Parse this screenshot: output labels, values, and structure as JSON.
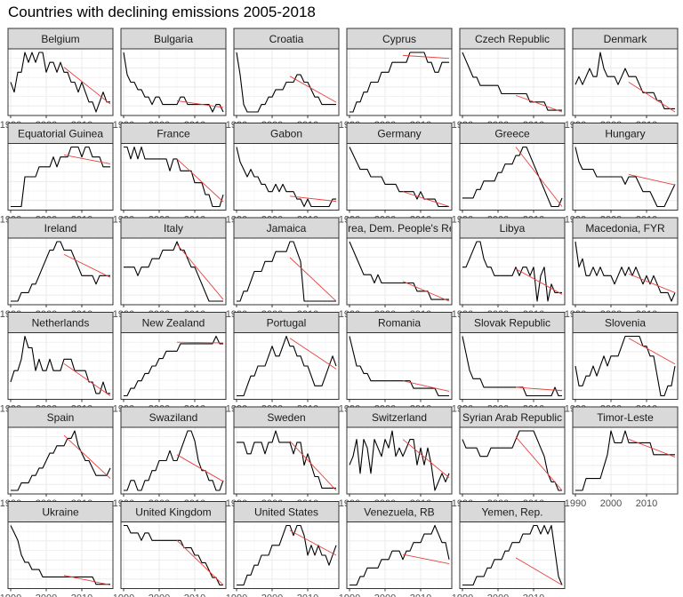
{
  "page": {
    "title": "Countries with declining emissions 2005-2018"
  },
  "chart_data": {
    "type": "line",
    "title": "Countries with declining emissions 2005-2018",
    "facet": "small multiples, 6 columns, free y scales",
    "x_ticks": [
      1990,
      2000,
      2010
    ],
    "xlim": [
      1990,
      2018
    ],
    "trend_period": [
      2005,
      2018
    ],
    "colors": {
      "series": "#000000",
      "trend": "#e8413f",
      "strip": "#d9d9d9",
      "grid": "#ebebeb"
    },
    "grid": true,
    "panels": [
      {
        "name": "Belgium",
        "values": [
          4,
          3,
          5,
          5,
          7,
          6,
          7,
          6,
          7,
          7,
          5,
          6,
          6,
          5,
          6,
          5,
          5,
          4,
          4,
          3,
          4,
          3,
          2,
          2,
          1,
          2,
          3,
          2,
          2
        ],
        "trend": [
          5.5,
          1.8
        ]
      },
      {
        "name": "Bulgaria",
        "values": [
          9,
          6,
          5,
          5,
          4,
          4,
          3,
          3,
          2,
          3,
          3,
          2,
          2,
          2,
          2,
          2,
          3,
          3,
          2,
          2,
          2,
          2,
          2,
          2,
          2,
          1,
          2,
          2,
          1
        ],
        "trend": [
          2.5,
          1.6
        ]
      },
      {
        "name": "Croatia",
        "values": [
          9,
          6,
          2,
          1,
          1,
          1,
          1,
          2,
          2,
          3,
          3,
          4,
          4,
          4,
          5,
          5,
          5,
          6,
          6,
          5,
          5,
          4,
          3,
          3,
          2,
          2,
          2,
          2,
          2
        ],
        "trend": [
          5.8,
          2.3
        ]
      },
      {
        "name": "Cyprus",
        "values": [
          1,
          1,
          2,
          2,
          3,
          3,
          4,
          4,
          4,
          5,
          5,
          5,
          6,
          6,
          6,
          6,
          6,
          7,
          7,
          7,
          7,
          7,
          6,
          6,
          5,
          5,
          6,
          6,
          6
        ],
        "trend": [
          6.7,
          6.4
        ]
      },
      {
        "name": "Czech Republic",
        "values": [
          9,
          8,
          7,
          6,
          6,
          5,
          5,
          5,
          5,
          5,
          5,
          4,
          4,
          4,
          4,
          4,
          4,
          4,
          4,
          3,
          3,
          3,
          3,
          3,
          2,
          2,
          2,
          2,
          2
        ],
        "trend": [
          3.8,
          1.8
        ]
      },
      {
        "name": "Denmark",
        "values": [
          5,
          6,
          5,
          6,
          7,
          6,
          6,
          9,
          7,
          6,
          6,
          6,
          5,
          6,
          7,
          6,
          6,
          6,
          5,
          4,
          4,
          4,
          4,
          3,
          3,
          2,
          2,
          2,
          2
        ],
        "trend": [
          5.3,
          1.6
        ]
      },
      {
        "name": "Equatorial Guinea",
        "values": [
          0,
          0,
          0,
          0,
          3,
          3,
          3,
          3,
          4,
          4,
          4,
          4,
          5,
          4,
          5,
          5,
          5,
          6,
          6,
          6,
          5,
          6,
          6,
          5,
          5,
          5,
          4,
          4,
          4
        ],
        "trend": [
          5.2,
          4.3
        ]
      },
      {
        "name": "France",
        "values": [
          7,
          7,
          6,
          7,
          6,
          7,
          6,
          6,
          6,
          6,
          6,
          6,
          6,
          5,
          6,
          6,
          5,
          5,
          5,
          5,
          4,
          4,
          4,
          3,
          3,
          2,
          2,
          2,
          3
        ],
        "trend": [
          6,
          2.4
        ]
      },
      {
        "name": "Gabon",
        "values": [
          10,
          8,
          7,
          6,
          7,
          6,
          6,
          5,
          5,
          4,
          4,
          5,
          4,
          5,
          4,
          4,
          4,
          3,
          3,
          2,
          3,
          2,
          2,
          2,
          2,
          2,
          2,
          3,
          3
        ],
        "trend": [
          3.4,
          2.7
        ]
      },
      {
        "name": "Germany",
        "values": [
          10,
          9,
          8,
          7,
          7,
          7,
          6,
          6,
          6,
          6,
          5,
          5,
          5,
          5,
          4,
          4,
          4,
          4,
          4,
          3,
          4,
          3,
          3,
          3,
          3,
          2,
          2,
          2,
          2
        ],
        "trend": [
          4,
          2
        ]
      },
      {
        "name": "Greece",
        "values": [
          3,
          3,
          3,
          3,
          4,
          4,
          5,
          5,
          5,
          5,
          6,
          6,
          7,
          7,
          7,
          8,
          8,
          9,
          9,
          8,
          7,
          6,
          5,
          4,
          3,
          2,
          2,
          2,
          3
        ],
        "trend": [
          9,
          2
        ]
      },
      {
        "name": "Hungary",
        "values": [
          9,
          7,
          6,
          6,
          6,
          6,
          5,
          5,
          5,
          5,
          5,
          5,
          5,
          5,
          4,
          5,
          5,
          5,
          4,
          3,
          3,
          3,
          2,
          1,
          1,
          1,
          2,
          3,
          4
        ],
        "trend": [
          5.3,
          3.9
        ]
      },
      {
        "name": "Ireland",
        "values": [
          2,
          2,
          2,
          3,
          3,
          3,
          4,
          4,
          5,
          6,
          7,
          8,
          8,
          9,
          9,
          8,
          8,
          8,
          7,
          6,
          5,
          5,
          5,
          5,
          4,
          5,
          5,
          5,
          5
        ],
        "trend": [
          7.5,
          4.8
        ]
      },
      {
        "name": "Italy",
        "values": [
          5,
          5,
          5,
          5,
          4,
          5,
          5,
          5,
          6,
          6,
          6,
          7,
          7,
          7,
          7,
          8,
          7,
          7,
          6,
          5,
          5,
          4,
          3,
          2,
          1,
          1,
          1,
          1,
          1
        ],
        "trend": [
          7.7,
          1.2
        ]
      },
      {
        "name": "Jamaica",
        "values": [
          2,
          2,
          3,
          3,
          4,
          5,
          5,
          5,
          6,
          6,
          6,
          7,
          7,
          7,
          7,
          8,
          8,
          7,
          6,
          2,
          2,
          2,
          2,
          2,
          2,
          2,
          2,
          2,
          2
        ],
        "trend": [
          6.4,
          2
        ]
      },
      {
        "name": "Korea, Dem. People's Rep.",
        "values": [
          9,
          8,
          7,
          6,
          5,
          5,
          5,
          4,
          5,
          4,
          4,
          4,
          4,
          4,
          4,
          4,
          4,
          4,
          4,
          3,
          3,
          3,
          3,
          2,
          2,
          2,
          2,
          2,
          2
        ],
        "trend": [
          4.2,
          1.8
        ]
      },
      {
        "name": "Libya",
        "values": [
          6,
          6,
          7,
          8,
          9,
          9,
          7,
          6,
          6,
          5,
          5,
          5,
          5,
          5,
          5,
          6,
          5,
          6,
          6,
          5,
          6,
          2,
          5,
          6,
          2,
          4,
          3,
          3,
          3
        ],
        "trend": [
          5.8,
          2.8
        ]
      },
      {
        "name": "Macedonia, FYR",
        "values": [
          9,
          6,
          7,
          5,
          5,
          6,
          5,
          6,
          5,
          5,
          5,
          4,
          5,
          6,
          5,
          6,
          5,
          6,
          5,
          4,
          5,
          4,
          5,
          4,
          3,
          3,
          3,
          2,
          3
        ],
        "trend": [
          5.2,
          3
        ]
      },
      {
        "name": "Netherlands",
        "values": [
          3,
          4,
          4,
          5,
          7,
          6,
          6,
          4,
          5,
          4,
          4,
          5,
          4,
          4,
          4,
          5,
          5,
          5,
          4,
          4,
          4,
          4,
          3,
          3,
          2,
          2,
          3,
          2,
          2
        ],
        "trend": [
          4.6,
          1.8
        ]
      },
      {
        "name": "New Zealand",
        "values": [
          1,
          1,
          2,
          2,
          3,
          3,
          4,
          4,
          5,
          5,
          6,
          6,
          7,
          7,
          7,
          7,
          8,
          8,
          8,
          8,
          8,
          8,
          8,
          8,
          8,
          8,
          9,
          8,
          8
        ],
        "trend": [
          8.2,
          8.1
        ]
      },
      {
        "name": "Portugal",
        "values": [
          2,
          2,
          2,
          3,
          4,
          4,
          5,
          5,
          5,
          6,
          7,
          6,
          6,
          7,
          8,
          7,
          7,
          6,
          6,
          5,
          5,
          4,
          3,
          3,
          3,
          4,
          5,
          6,
          5
        ],
        "trend": [
          7.8,
          4.7
        ]
      },
      {
        "name": "Romania",
        "values": [
          9,
          7,
          5,
          5,
          4,
          4,
          3,
          3,
          3,
          3,
          3,
          3,
          3,
          3,
          3,
          3,
          3,
          3,
          2,
          2,
          2,
          2,
          2,
          2,
          2,
          1,
          1,
          1,
          1
        ],
        "trend": [
          3,
          1.6
        ]
      },
      {
        "name": "Slovak Republic",
        "values": [
          9,
          7,
          5,
          4,
          4,
          4,
          3,
          3,
          3,
          3,
          3,
          3,
          3,
          3,
          3,
          3,
          3,
          3,
          2,
          2,
          2,
          2,
          2,
          2,
          2,
          2,
          3,
          2,
          2
        ],
        "trend": [
          3,
          2.6
        ]
      },
      {
        "name": "Slovenia",
        "values": [
          4,
          2,
          2,
          3,
          3,
          4,
          3,
          4,
          5,
          4,
          5,
          5,
          5,
          6,
          7,
          7,
          7,
          7,
          7,
          6,
          6,
          5,
          5,
          3,
          1,
          1,
          2,
          2,
          4
        ],
        "trend": [
          6.8,
          4.2
        ]
      },
      {
        "name": "Spain",
        "values": [
          1,
          1,
          1,
          2,
          2,
          2,
          3,
          3,
          4,
          4,
          5,
          6,
          6,
          7,
          7,
          7,
          8,
          8,
          9,
          7,
          6,
          5,
          5,
          4,
          3,
          3,
          3,
          3,
          4
        ],
        "trend": [
          8.4,
          2.6
        ]
      },
      {
        "name": "Swaziland",
        "values": [
          2,
          2,
          3,
          3,
          2,
          2,
          3,
          3,
          4,
          4,
          5,
          5,
          5,
          6,
          5,
          5,
          6,
          7,
          8,
          8,
          7,
          5,
          4,
          4,
          3,
          3,
          2,
          2,
          3
        ],
        "trend": [
          5.6,
          2.9
        ]
      },
      {
        "name": "Sweden",
        "values": [
          6,
          6,
          6,
          5,
          5,
          6,
          6,
          6,
          5,
          6,
          6,
          7,
          6,
          6,
          6,
          6,
          5,
          6,
          6,
          4,
          5,
          4,
          3,
          3,
          2,
          2,
          2,
          2,
          2
        ],
        "trend": [
          6.1,
          1.8
        ]
      },
      {
        "name": "Switzerland",
        "values": [
          4,
          5,
          7,
          3,
          7,
          6,
          3,
          7,
          6,
          5,
          7,
          6,
          8,
          5,
          6,
          5,
          6,
          7,
          7,
          4,
          6,
          4,
          6,
          4,
          1,
          2,
          3,
          2,
          3
        ],
        "trend": [
          7,
          2.5
        ]
      },
      {
        "name": "Syrian Arab Republic",
        "values": [
          7,
          6,
          6,
          6,
          6,
          5,
          5,
          5,
          6,
          6,
          6,
          6,
          6,
          6,
          6,
          7,
          8,
          8,
          8,
          8,
          8,
          7,
          6,
          5,
          3,
          2,
          2,
          1,
          1
        ],
        "trend": [
          7.3,
          1
        ]
      },
      {
        "name": "Timor-Leste",
        "values": [
          1,
          1,
          1,
          2,
          2,
          2,
          2,
          2,
          3,
          4,
          6,
          5,
          5,
          5,
          6,
          5,
          5,
          5,
          5,
          5,
          5,
          5,
          4,
          4,
          4,
          4,
          4,
          4,
          4
        ],
        "trend": [
          5.3,
          3.8
        ]
      },
      {
        "name": "Ukraine",
        "values": [
          9,
          8,
          7,
          5,
          4,
          4,
          3,
          3,
          3,
          2,
          2,
          2,
          2,
          2,
          2,
          2,
          2,
          2,
          2,
          2,
          2,
          2,
          2,
          2,
          1,
          1,
          1,
          1,
          1
        ],
        "trend": [
          2.2,
          0.9
        ]
      },
      {
        "name": "United Kingdom",
        "values": [
          9,
          9,
          8,
          8,
          8,
          7,
          8,
          8,
          7,
          7,
          7,
          7,
          7,
          7,
          7,
          7,
          7,
          6,
          6,
          6,
          5,
          5,
          4,
          4,
          3,
          2,
          2,
          1,
          1
        ],
        "trend": [
          7,
          1
        ]
      },
      {
        "name": "United States",
        "values": [
          2,
          2,
          2,
          3,
          3,
          4,
          4,
          5,
          5,
          5,
          6,
          6,
          6,
          7,
          8,
          8,
          7,
          8,
          8,
          7,
          5,
          6,
          5,
          6,
          5,
          5,
          4,
          5,
          6
        ],
        "trend": [
          7.5,
          5
        ]
      },
      {
        "name": "Venezuela, RB",
        "values": [
          1,
          1,
          1,
          2,
          2,
          3,
          3,
          3,
          3,
          4,
          4,
          4,
          5,
          5,
          5,
          4,
          5,
          5,
          6,
          6,
          6,
          7,
          7,
          7,
          8,
          7,
          6,
          6,
          4
        ],
        "trend": [
          4.6,
          3.5
        ]
      },
      {
        "name": "Yemen, Rep.",
        "values": [
          1,
          1,
          1,
          1,
          2,
          2,
          2,
          3,
          3,
          4,
          4,
          4,
          5,
          5,
          6,
          6,
          6,
          7,
          7,
          7,
          8,
          8,
          7,
          8,
          7,
          8,
          5,
          2,
          1
        ],
        "trend": [
          4.2,
          1
        ]
      }
    ]
  }
}
